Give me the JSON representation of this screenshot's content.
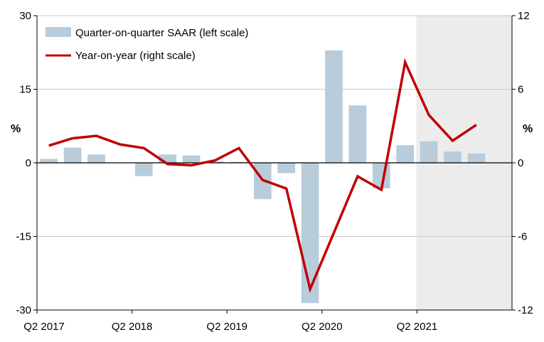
{
  "chart_data": {
    "type": "bar+line",
    "categories": [
      "Q2 2017",
      "Q3 2017",
      "Q4 2017",
      "Q1 2018",
      "Q2 2018",
      "Q3 2018",
      "Q4 2018",
      "Q1 2019",
      "Q2 2019",
      "Q3 2019",
      "Q4 2019",
      "Q1 2020",
      "Q2 2020",
      "Q3 2020",
      "Q4 2020",
      "Q1 2021",
      "Q2 2021",
      "Q3 2021",
      "Q4 2021",
      "Q1 2022"
    ],
    "x_tick_labels": [
      "Q2 2017",
      "Q2 2018",
      "Q2 2019",
      "Q2 2020",
      "Q2 2021"
    ],
    "series": [
      {
        "name": "Quarter-on-quarter SAAR (left scale)",
        "type": "bar",
        "axis": "left",
        "color": "#b9ccdb",
        "values": [
          0.8,
          3.1,
          1.7,
          0.0,
          -2.7,
          1.7,
          1.5,
          0.3,
          0.2,
          -7.4,
          -2.1,
          -28.6,
          22.9,
          11.7,
          -5.2,
          3.6,
          4.4,
          2.3,
          1.9,
          null
        ]
      },
      {
        "name": "Year-on-year (right scale)",
        "type": "line",
        "axis": "right",
        "color": "#c00000",
        "values": [
          1.4,
          2.0,
          2.2,
          1.5,
          1.2,
          -0.1,
          -0.2,
          0.2,
          1.2,
          -1.4,
          -2.1,
          -10.3,
          -5.7,
          -1.1,
          -2.2,
          8.2,
          3.9,
          1.8,
          3.1,
          null
        ]
      }
    ],
    "left_axis": {
      "label": "%",
      "ylim": [
        -30,
        30
      ],
      "ticks": [
        "30",
        "15",
        "0",
        "-15",
        "-30"
      ]
    },
    "right_axis": {
      "label": "%",
      "ylim": [
        -12,
        12
      ],
      "ticks": [
        "12",
        "6",
        "0",
        "-6",
        "-12"
      ]
    },
    "shaded_region": {
      "from_category": "Q2 2021",
      "color": "#ececec"
    },
    "legend_position": "top-left",
    "colors": {
      "bar": "#b9ccdb",
      "line": "#c00000",
      "shade": "#ececec",
      "grid": "#c8c8c8"
    }
  }
}
